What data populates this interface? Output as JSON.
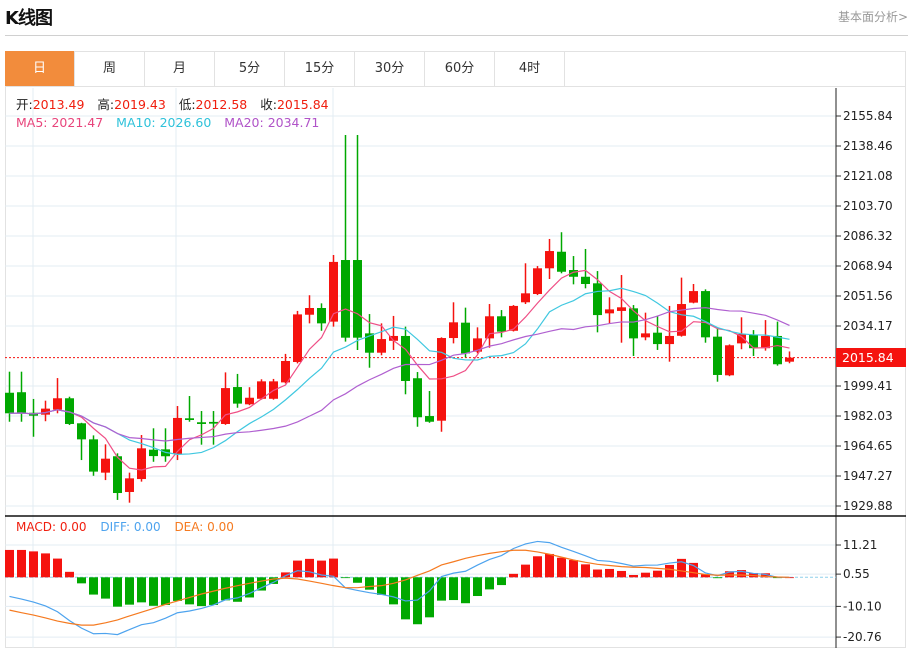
{
  "header": {
    "title": "K线图",
    "link": "基本面分析>"
  },
  "tabs": [
    {
      "label": "日",
      "active": true
    },
    {
      "label": "周"
    },
    {
      "label": "月"
    },
    {
      "label": "5分"
    },
    {
      "label": "15分"
    },
    {
      "label": "30分"
    },
    {
      "label": "60分"
    },
    {
      "label": "4时"
    }
  ],
  "info": {
    "open_label": "开:",
    "open": "2013.49",
    "high_label": "高:",
    "high": "2019.43",
    "low_label": "低:",
    "low": "2012.58",
    "close_label": "收:",
    "close": "2015.84",
    "ma5": "MA5: 2021.47",
    "ma10": "MA10: 2026.60",
    "ma20": "MA20: 2034.71"
  },
  "macd_info": {
    "macd": "MACD: 0.00",
    "diff": "DIFF: 0.00",
    "dea": "DEA: 0.00"
  },
  "colors": {
    "up": "#f5130f",
    "down": "#00a800",
    "ma5": "#ef4f86",
    "ma10": "#40c8e0",
    "ma20": "#b060d0",
    "diff": "#4da3ee",
    "dea": "#f57a20",
    "accent": "#f28c3c"
  },
  "chart_data": [
    {
      "type": "candlestick",
      "ohlc_order": [
        "open",
        "high",
        "low",
        "close"
      ],
      "ylim": [
        1929.88,
        2155.84
      ],
      "yticks": [
        "2155.84",
        "2138.46",
        "2121.08",
        "2103.70",
        "2086.32",
        "2068.94",
        "2051.56",
        "2034.17",
        "1999.41",
        "1982.03",
        "1964.65",
        "1947.27",
        "1929.88"
      ],
      "last_price": "2015.84",
      "moving_averages": [
        5,
        10,
        20
      ],
      "candles": [
        [
          1995.5,
          2007.7,
          1978.7,
          1983.6
        ],
        [
          1995.8,
          2007.7,
          1978.7,
          1983.9
        ],
        [
          1983.9,
          1991.9,
          1970.0,
          1982.2
        ],
        [
          1982.8,
          1990.9,
          1979.0,
          1986.3
        ],
        [
          1985.7,
          2004.0,
          1983.6,
          1992.3
        ],
        [
          1992.3,
          1993.2,
          1976.8,
          1977.4
        ],
        [
          1977.8,
          1978.1,
          1956.5,
          1968.5
        ],
        [
          1968.5,
          1970.8,
          1947.4,
          1949.8
        ],
        [
          1949.2,
          1965.6,
          1944.9,
          1957.3
        ],
        [
          1958.7,
          1960.4,
          1933.4,
          1937.4
        ],
        [
          1938.0,
          1949.2,
          1931.8,
          1945.9
        ],
        [
          1945.5,
          1971.0,
          1944.0,
          1963.3
        ],
        [
          1962.5,
          1974.9,
          1955.5,
          1958.8
        ],
        [
          1962.7,
          1974.9,
          1955.5,
          1958.7
        ],
        [
          1960.0,
          1987.8,
          1956.5,
          1980.9
        ],
        [
          1980.7,
          1993.6,
          1978.7,
          1979.7
        ],
        [
          1978.4,
          1984.9,
          1965.4,
          1977.4
        ],
        [
          1978.6,
          1984.9,
          1965.4,
          1977.6
        ],
        [
          1977.4,
          2007.3,
          1976.9,
          1998.2
        ],
        [
          1998.8,
          2006.4,
          1986.8,
          1989.2
        ],
        [
          1988.8,
          1998.7,
          1988.3,
          1992.6
        ],
        [
          1992.0,
          2003.3,
          1991.5,
          2002.1
        ],
        [
          1992.0,
          2003.5,
          1991.5,
          2002.1
        ],
        [
          2001.5,
          2018.0,
          2000.9,
          2013.9
        ],
        [
          2013.3,
          2042.9,
          2012.5,
          2040.9
        ],
        [
          2040.7,
          2052.0,
          2035.7,
          2044.6
        ],
        [
          2044.6,
          2047.3,
          2031.4,
          2035.7
        ],
        [
          2036.7,
          2075.3,
          2033.8,
          2071.3
        ],
        [
          2072.4,
          2144.8,
          2025.1,
          2027.4
        ],
        [
          2072.4,
          2144.8,
          2020.3,
          2027.4
        ],
        [
          2029.9,
          2041.1,
          2010.0,
          2018.7
        ],
        [
          2018.7,
          2035.7,
          2017.2,
          2026.6
        ],
        [
          2025.6,
          2040.0,
          2020.3,
          2028.4
        ],
        [
          2028.4,
          2033.8,
          1994.6,
          2002.3
        ],
        [
          2003.9,
          2007.5,
          1975.8,
          1981.3
        ],
        [
          1982.0,
          1996.5,
          1978.1,
          1978.7
        ],
        [
          1979.3,
          2027.6,
          1972.9,
          2027.2
        ],
        [
          2027.2,
          2047.9,
          2024.1,
          2036.3
        ],
        [
          2036.1,
          2044.8,
          2016.0,
          2018.3
        ],
        [
          2019.3,
          2033.4,
          2018.3,
          2027.0
        ],
        [
          2027.0,
          2046.9,
          2021.6,
          2039.8
        ],
        [
          2039.8,
          2043.4,
          2027.6,
          2030.9
        ],
        [
          2031.4,
          2046.3,
          2031.0,
          2045.8
        ],
        [
          2047.9,
          2070.5,
          2046.9,
          2053.1
        ],
        [
          2052.7,
          2068.9,
          2052.1,
          2067.6
        ],
        [
          2067.6,
          2084.6,
          2061.4,
          2077.6
        ],
        [
          2077.2,
          2088.5,
          2064.7,
          2065.6
        ],
        [
          2066.6,
          2074.7,
          2058.3,
          2062.7
        ],
        [
          2062.7,
          2078.8,
          2056.0,
          2058.5
        ],
        [
          2058.9,
          2066.0,
          2030.5,
          2040.5
        ],
        [
          2041.5,
          2050.8,
          2035.7,
          2043.8
        ],
        [
          2042.9,
          2063.7,
          2024.5,
          2045.0
        ],
        [
          2044.4,
          2046.3,
          2016.8,
          2027.0
        ],
        [
          2027.6,
          2041.9,
          2025.9,
          2029.9
        ],
        [
          2030.3,
          2040.1,
          2020.3,
          2023.7
        ],
        [
          2023.7,
          2045.8,
          2013.5,
          2028.4
        ],
        [
          2028.5,
          2062.2,
          2028.0,
          2046.9
        ],
        [
          2047.7,
          2058.5,
          2047.3,
          2054.4
        ],
        [
          2054.4,
          2055.4,
          2024.5,
          2027.6
        ],
        [
          2028.0,
          2033.2,
          2001.9,
          2005.8
        ],
        [
          2005.6,
          2023.5,
          2005.1,
          2023.0
        ],
        [
          2024.1,
          2039.2,
          2020.7,
          2029.5
        ],
        [
          2029.0,
          2031.8,
          2016.8,
          2021.3
        ],
        [
          2021.3,
          2037.6,
          2019.9,
          2028.4
        ],
        [
          2028.4,
          2036.7,
          2011.2,
          2012.0
        ],
        [
          2013.49,
          2019.43,
          2012.58,
          2015.84
        ]
      ]
    },
    {
      "type": "bar+line",
      "ylim": [
        -20.76,
        11.21
      ],
      "yticks": [
        "11.21",
        "0.55",
        "-10.10",
        "-20.76"
      ],
      "macd": [
        9.5,
        9.5,
        9.0,
        8.3,
        6.5,
        1.9,
        -2.1,
        -6.0,
        -7.4,
        -10.2,
        -9.5,
        -8.7,
        -9.9,
        -9.6,
        -8.2,
        -9.4,
        -10.0,
        -9.6,
        -8.0,
        -8.5,
        -7.0,
        -4.6,
        -2.3,
        1.7,
        5.8,
        6.4,
        5.8,
        6.5,
        -0.2,
        -1.9,
        -4.3,
        -6.1,
        -9.4,
        -14.6,
        -16.3,
        -13.9,
        -8.1,
        -7.9,
        -9.0,
        -6.5,
        -4.2,
        -2.7,
        1.2,
        4.4,
        7.3,
        8.1,
        6.8,
        6.0,
        4.5,
        2.7,
        2.9,
        2.2,
        0.8,
        1.6,
        2.3,
        4.3,
        6.4,
        5.0,
        1.0,
        -0.3,
        2.1,
        2.5,
        1.5,
        1.4,
        -0.2,
        0.0
      ],
      "dea": [
        -11.4,
        -12.3,
        -13.1,
        -14.1,
        -15.2,
        -16.0,
        -16.6,
        -16.6,
        -15.8,
        -14.8,
        -13.4,
        -12.1,
        -10.8,
        -9.4,
        -8.2,
        -7.0,
        -5.8,
        -4.8,
        -3.8,
        -2.9,
        -2.1,
        -1.3,
        -0.6,
        -0.3,
        -0.6,
        -1.3,
        -2.1,
        -2.9,
        -3.6,
        -3.6,
        -3.2,
        -2.9,
        -2.1,
        -0.9,
        0.7,
        2.2,
        4.3,
        5.4,
        6.6,
        7.5,
        8.3,
        8.9,
        9.4,
        9.4,
        8.8,
        8.0,
        7.0,
        6.0,
        5.2,
        4.5,
        4.1,
        3.7,
        3.5,
        3.4,
        3.1,
        2.8,
        2.2,
        1.6,
        1.0,
        0.7,
        0.8,
        0.8,
        0.6,
        0.3,
        0.1,
        0.0
      ],
      "diff": [
        -6.65,
        -7.55,
        -8.6,
        -9.95,
        -11.95,
        -15.05,
        -17.65,
        -19.6,
        -19.5,
        -19.9,
        -18.15,
        -16.45,
        -15.75,
        -14.2,
        -12.3,
        -11.7,
        -10.8,
        -9.6,
        -7.8,
        -7.15,
        -5.6,
        -3.6,
        -1.75,
        0.55,
        2.3,
        1.9,
        0.8,
        0.35,
        -3.7,
        -4.55,
        -5.35,
        -5.95,
        -6.8,
        -8.2,
        -7.9,
        -4.75,
        0.25,
        1.45,
        2.1,
        4.25,
        6.2,
        7.55,
        10.0,
        11.6,
        12.45,
        12.05,
        10.4,
        9.0,
        7.45,
        5.85,
        5.55,
        4.8,
        3.9,
        4.2,
        4.25,
        4.95,
        5.4,
        4.1,
        1.5,
        0.55,
        1.85,
        2.05,
        1.35,
        1.0,
        0.0,
        0.0
      ]
    }
  ]
}
